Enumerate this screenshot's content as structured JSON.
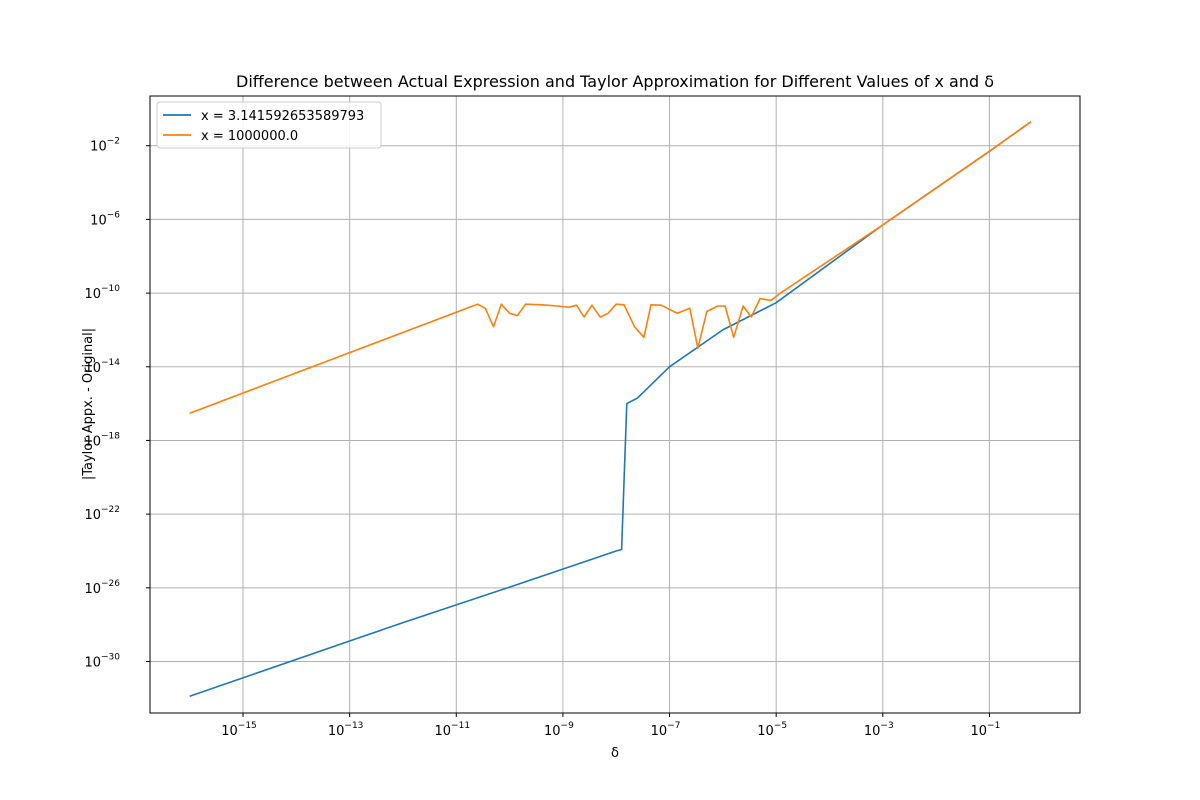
{
  "chart_data": {
    "type": "line",
    "title": "Difference between Actual Expression and Taylor Approximation for Different Values of x and δ",
    "xlabel": "δ",
    "ylabel": "|Taylor Appx. - Original|",
    "xscale": "log",
    "yscale": "log",
    "xlim": [
      1.8e-17,
      5.0
    ],
    "ylim": [
      1.6e-33,
      5.0
    ],
    "grid": true,
    "legend_position": "top-left",
    "x_ticks": [
      {
        "value": 1e-15,
        "base": "10",
        "exp": "−15"
      },
      {
        "value": 1e-13,
        "base": "10",
        "exp": "−13"
      },
      {
        "value": 1e-11,
        "base": "10",
        "exp": "−11"
      },
      {
        "value": 1e-09,
        "base": "10",
        "exp": "−9"
      },
      {
        "value": 1e-07,
        "base": "10",
        "exp": "−7"
      },
      {
        "value": 1e-05,
        "base": "10",
        "exp": "−5"
      },
      {
        "value": 0.001,
        "base": "10",
        "exp": "−3"
      },
      {
        "value": 0.1,
        "base": "10",
        "exp": "−1"
      }
    ],
    "y_ticks": [
      {
        "value": 1e-30,
        "base": "10",
        "exp": "−30"
      },
      {
        "value": 1e-26,
        "base": "10",
        "exp": "−26"
      },
      {
        "value": 1e-22,
        "base": "10",
        "exp": "−22"
      },
      {
        "value": 1e-18,
        "base": "10",
        "exp": "−18"
      },
      {
        "value": 1e-14,
        "base": "10",
        "exp": "−14"
      },
      {
        "value": 1e-10,
        "base": "10",
        "exp": "−10"
      },
      {
        "value": 1e-06,
        "base": "10",
        "exp": "−6"
      },
      {
        "value": 0.01,
        "base": "10",
        "exp": "−2"
      }
    ],
    "series": [
      {
        "name": "x = 3.141592653589793",
        "color": "#1f77b4",
        "points": [
          [
            1e-16,
            1.3e-32
          ],
          [
            1e-12,
            1.3e-28
          ],
          [
            1e-10,
            1.1e-26
          ],
          [
            1e-08,
            1e-24
          ],
          [
            1.26e-08,
            1.2e-24
          ],
          [
            1.58e-08,
            1e-16
          ],
          [
            2.5e-08,
            2e-16
          ],
          [
            1e-07,
            1e-14
          ],
          [
            1e-06,
            1e-12
          ],
          [
            1e-05,
            3e-11
          ],
          [
            0.001,
            5e-07
          ],
          [
            0.1,
            0.005
          ],
          [
            0.6,
            0.2
          ]
        ]
      },
      {
        "name": "x = 1000000.0",
        "color": "#ff7f0e",
        "points": [
          [
            1e-16,
            3e-17
          ],
          [
            2.5e-11,
            2.5e-11
          ],
          [
            3.5e-11,
            1.5e-11
          ],
          [
            5e-11,
            1.5e-12
          ],
          [
            7e-11,
            2.5e-11
          ],
          [
            1e-10,
            8e-12
          ],
          [
            1.4e-10,
            6e-12
          ],
          [
            2e-10,
            2.5e-11
          ],
          [
            4e-10,
            2.3e-11
          ],
          [
            8e-10,
            2e-11
          ],
          [
            1.3e-09,
            1.7e-11
          ],
          [
            1.8e-09,
            2.2e-11
          ],
          [
            2.5e-09,
            5e-12
          ],
          [
            3.5e-09,
            2.2e-11
          ],
          [
            5e-09,
            5e-12
          ],
          [
            7e-09,
            8e-12
          ],
          [
            1e-08,
            2.5e-11
          ],
          [
            1.4e-08,
            2.3e-11
          ],
          [
            2.2e-08,
            1.5e-12
          ],
          [
            3.3e-08,
            4e-13
          ],
          [
            4.5e-08,
            2.3e-11
          ],
          [
            7e-08,
            2.2e-11
          ],
          [
            1.4e-07,
            8e-12
          ],
          [
            2.4e-07,
            1.5e-11
          ],
          [
            3.4e-07,
            1e-13
          ],
          [
            5e-07,
            1e-11
          ],
          [
            8e-07,
            2e-11
          ],
          [
            1.1e-06,
            2e-11
          ],
          [
            1.6e-06,
            4e-13
          ],
          [
            2.4e-06,
            2e-11
          ],
          [
            3.4e-06,
            5e-12
          ],
          [
            5e-06,
            5e-11
          ],
          [
            8e-06,
            4e-11
          ],
          [
            1.2e-05,
            1e-10
          ],
          [
            0.001,
            5e-07
          ],
          [
            0.1,
            0.005
          ],
          [
            0.6,
            0.2
          ]
        ]
      }
    ]
  }
}
